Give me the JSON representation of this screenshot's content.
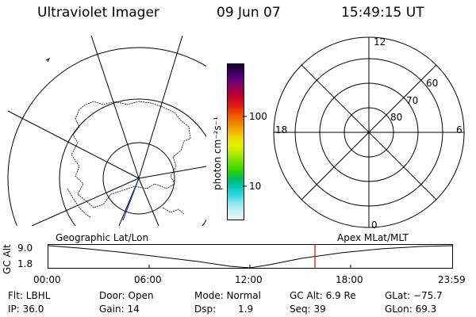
{
  "header": {
    "instrument": "Ultraviolet Imager",
    "date": "09 Jun 07",
    "time": "15:49:15 UT"
  },
  "colorbar": {
    "label": "photon cm⁻²s⁻¹",
    "tick_100": "100",
    "tick_10": "10",
    "colors": [
      "#1a0030",
      "#3a0060",
      "#6a0080",
      "#9a0050",
      "#c4002a",
      "#e01818",
      "#ee4a00",
      "#f07a00",
      "#f0a800",
      "#f0d800",
      "#e8f000",
      "#b0e800",
      "#70e000",
      "#30d400",
      "#00c060",
      "#00c8b0",
      "#30d8e8",
      "#90e8f0",
      "#c8f0f4",
      "#e8f8f8"
    ]
  },
  "polar": {
    "mlt_12": "12",
    "mlt_18": "18",
    "mlt_6": "6",
    "mlt_0": "0",
    "lat_60": "60",
    "lat_70": "70",
    "lat_80": "80"
  },
  "timeline": {
    "y_axis_label": "GC Alt",
    "y_max": "9.0",
    "y_min": "1.8",
    "left_label": "Geographic Lat/Lon",
    "right_label": "Apex MLat/MLT",
    "ticks": [
      "00:00",
      "06:00",
      "12:00",
      "18:00",
      "23:59"
    ],
    "marker_color": "#e00000"
  },
  "info": {
    "filter": "Flt: LBHL",
    "ip": "IP: 36.0",
    "door": "Door: Open",
    "gain": "Gain: 14",
    "mode": "Mode: Normal",
    "dsp_label": "Dsp:",
    "dsp_value": "1.9",
    "gc_alt": "GC Alt: 6.9 Re",
    "seq": "Seq: 39",
    "glat": "GLat: −75.7",
    "glon": "GLon: 69.3"
  }
}
